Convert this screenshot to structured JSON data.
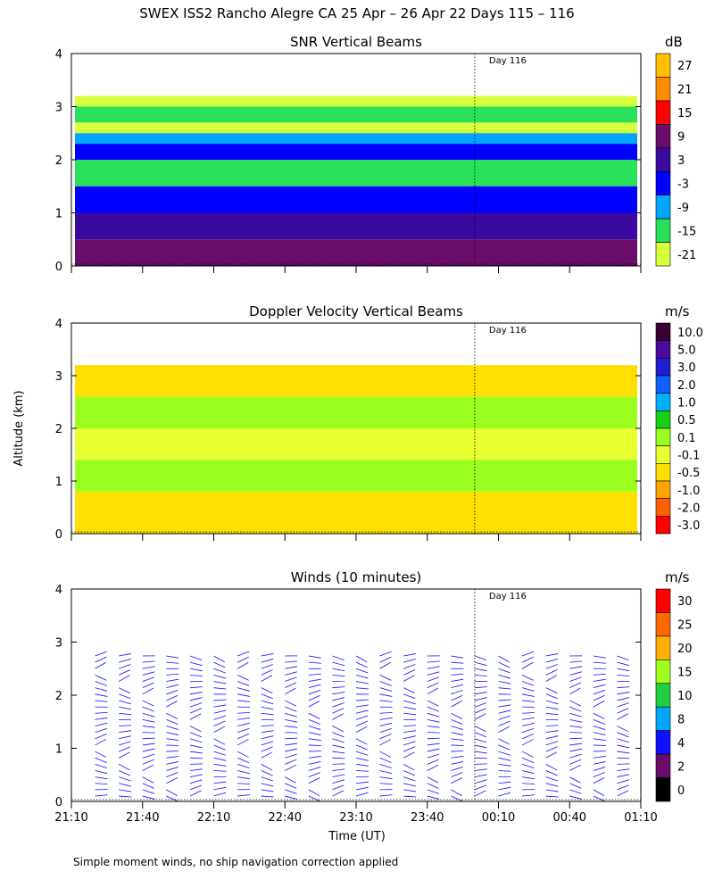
{
  "title": "SWEX ISS2 Rancho Alegre CA  25 Apr – 26 Apr 22 Days 115 – 116",
  "y_axis_label": "Altitude (km)",
  "x_axis_label": "Time (UT)",
  "footnote": "Simple moment winds, no ship navigation correction applied",
  "day_marker_label": "Day 116",
  "x_ticks": [
    "21:10",
    "21:40",
    "22:10",
    "22:40",
    "23:10",
    "23:40",
    "00:10",
    "00:40",
    "01:10"
  ],
  "y_ticks": [
    "0",
    "1",
    "2",
    "3",
    "4"
  ],
  "chart_data": [
    {
      "type": "heatmap",
      "title": "SNR Vertical Beams",
      "colorbar_unit": "dB",
      "colorbar_labels": [
        "27",
        "21",
        "15",
        "9",
        "3",
        "-3",
        "-9",
        "-15",
        "-21"
      ],
      "colorbar_colors": [
        "#ffc000",
        "#ff8c00",
        "#ff0000",
        "#6a0d6a",
        "#3a0aa0",
        "#0000ff",
        "#00a6ff",
        "#28e05a",
        "#d8ff3c"
      ],
      "x_range": [
        "21:10",
        "01:10"
      ],
      "ylim": [
        0,
        4
      ],
      "day_boundary": "00:00",
      "bands": [
        {
          "top_km": 3.2,
          "snr_db": -21
        },
        {
          "top_km": 3.0,
          "snr_db": -15
        },
        {
          "top_km": 2.7,
          "snr_db": -21
        },
        {
          "top_km": 2.5,
          "snr_db": -9
        },
        {
          "top_km": 2.3,
          "snr_db": -3
        },
        {
          "top_km": 2.0,
          "snr_db": -15
        },
        {
          "top_km": 1.5,
          "snr_db": -3
        },
        {
          "top_km": 1.0,
          "snr_db": 3
        },
        {
          "top_km": 0.5,
          "snr_db": 9
        }
      ]
    },
    {
      "type": "heatmap",
      "title": "Doppler Velocity Vertical Beams",
      "colorbar_unit": "m/s",
      "colorbar_labels": [
        "10.0",
        "5.0",
        "3.0",
        "2.0",
        "1.0",
        "0.5",
        "0.1",
        "-0.1",
        "-0.5",
        "-1.0",
        "-2.0",
        "-3.0"
      ],
      "colorbar_colors": [
        "#3a0030",
        "#4a0aa0",
        "#1f1fd0",
        "#1060ff",
        "#00b0ff",
        "#18d018",
        "#9aff20",
        "#e8ff30",
        "#ffe000",
        "#ffa500",
        "#ff6000",
        "#ff0000"
      ],
      "x_range": [
        "21:10",
        "01:10"
      ],
      "ylim": [
        0,
        4
      ],
      "day_boundary": "00:00",
      "bands": [
        {
          "top_km": 3.2,
          "w_ms": -0.5
        },
        {
          "top_km": 2.6,
          "w_ms": 0.1
        },
        {
          "top_km": 2.0,
          "w_ms": -0.1
        },
        {
          "top_km": 1.4,
          "w_ms": 0.1
        },
        {
          "top_km": 0.8,
          "w_ms": -0.5
        }
      ]
    },
    {
      "type": "scatter",
      "title": "Winds (10 minutes)",
      "colorbar_unit": "m/s",
      "colorbar_labels": [
        "30",
        "25",
        "20",
        "15",
        "10",
        "8",
        "4",
        "2",
        "0"
      ],
      "colorbar_colors": [
        "#ff0000",
        "#ff6a00",
        "#ffb000",
        "#a0ff20",
        "#20d040",
        "#00a6ff",
        "#1010ff",
        "#6a0d6a",
        "#000000"
      ],
      "x_range": [
        "21:10",
        "01:10"
      ],
      "ylim": [
        0,
        4
      ],
      "day_boundary": "00:00",
      "profile_times": [
        "21:20",
        "21:30",
        "21:40",
        "21:50",
        "22:00",
        "22:10",
        "22:20",
        "22:30",
        "22:40",
        "22:50",
        "23:00",
        "23:10",
        "23:20",
        "23:30",
        "23:40",
        "23:50",
        "00:00",
        "00:10",
        "00:20",
        "00:30",
        "00:40",
        "00:50",
        "01:00"
      ],
      "typical_speed_ms": 4
    }
  ]
}
